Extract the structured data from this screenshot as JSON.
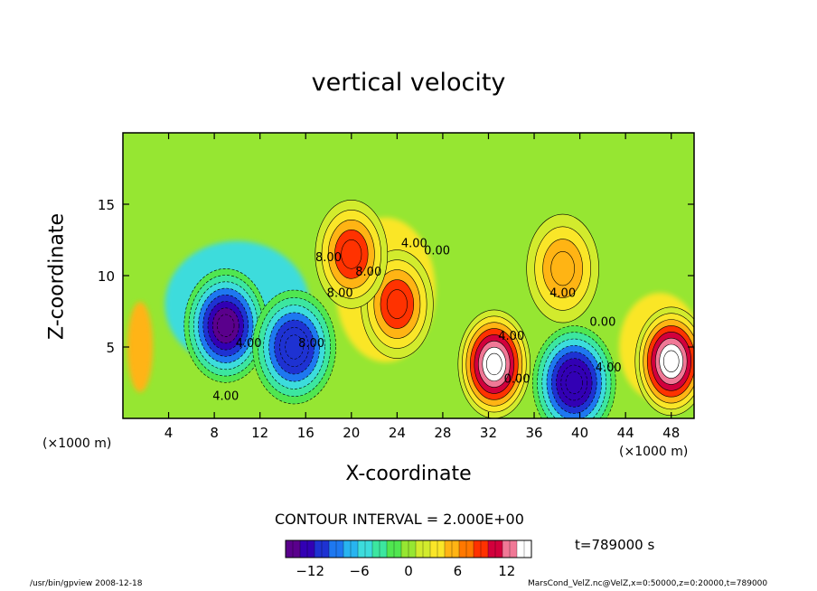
{
  "chart_data": {
    "type": "heatmap",
    "title": "vertical velocity",
    "xlabel": "X-coordinate",
    "ylabel": "Z-coordinate",
    "x_unit_left": "(×1000 m)",
    "x_unit_right": "(×1000 m)",
    "xlim": [
      0,
      50
    ],
    "ylim": [
      0,
      20
    ],
    "x_ticks": [
      4,
      8,
      12,
      16,
      20,
      24,
      28,
      32,
      36,
      40,
      44,
      48
    ],
    "y_ticks": [
      5,
      10,
      15
    ],
    "contour_interval_text": "CONTOUR INTERVAL = 2.000E+00",
    "time_text": "t=789000 s",
    "colorbar": {
      "min": -15,
      "max": 15,
      "ticks": [
        -12,
        -6,
        0,
        6,
        12
      ],
      "colors": [
        "#5a008c",
        "#3200b4",
        "#1e32d2",
        "#1e78f0",
        "#28b4f0",
        "#3cdcdc",
        "#3ce6a0",
        "#50e650",
        "#96e632",
        "#d2eb2d",
        "#fae628",
        "#ffb414",
        "#ff7800",
        "#ff3200",
        "#d2003c",
        "#f07896",
        "#ffffff"
      ]
    },
    "features": [
      {
        "kind": "downdraft",
        "x": 9,
        "z": 6.5,
        "value": -14
      },
      {
        "kind": "downdraft",
        "x": 15,
        "z": 5,
        "value": -11
      },
      {
        "kind": "updraft",
        "x": 24,
        "z": 8,
        "value": 8
      },
      {
        "kind": "updraft",
        "x": 20,
        "z": 11.5,
        "value": 8
      },
      {
        "kind": "updraft",
        "x": 32.5,
        "z": 3.8,
        "value": 14
      },
      {
        "kind": "downdraft",
        "x": 39.5,
        "z": 2.5,
        "value": -13
      },
      {
        "kind": "updraft",
        "x": 48,
        "z": 4,
        "value": 14
      },
      {
        "kind": "updraft",
        "x": 38.5,
        "z": 10.5,
        "value": 5
      }
    ],
    "contour_labels": [
      {
        "text": "4.00",
        "x": 25.5,
        "z": 12
      },
      {
        "text": "0.00",
        "x": 27.5,
        "z": 11.5
      },
      {
        "text": "8.00",
        "x": 21.5,
        "z": 10
      },
      {
        "text": "8.00",
        "x": 19,
        "z": 8.5
      },
      {
        "text": "8.00",
        "x": 18,
        "z": 11
      },
      {
        "text": "8.00",
        "x": 16.5,
        "z": 5
      },
      {
        "text": "4.00",
        "x": 11,
        "z": 5
      },
      {
        "text": "4.00",
        "x": 9,
        "z": 1.3
      },
      {
        "text": "4.00",
        "x": 34,
        "z": 5.5
      },
      {
        "text": "0.00",
        "x": 34.5,
        "z": 2.5
      },
      {
        "text": "4.00",
        "x": 38.5,
        "z": 8.5
      },
      {
        "text": "0.00",
        "x": 42,
        "z": 6.5
      },
      {
        "text": "4.00",
        "x": 42.5,
        "z": 3.3
      }
    ]
  },
  "footer": {
    "left": "/usr/bin/gpview  2008-12-18",
    "right": "MarsCond_VelZ.nc@VelZ,x=0:50000,z=0:20000,t=789000"
  }
}
